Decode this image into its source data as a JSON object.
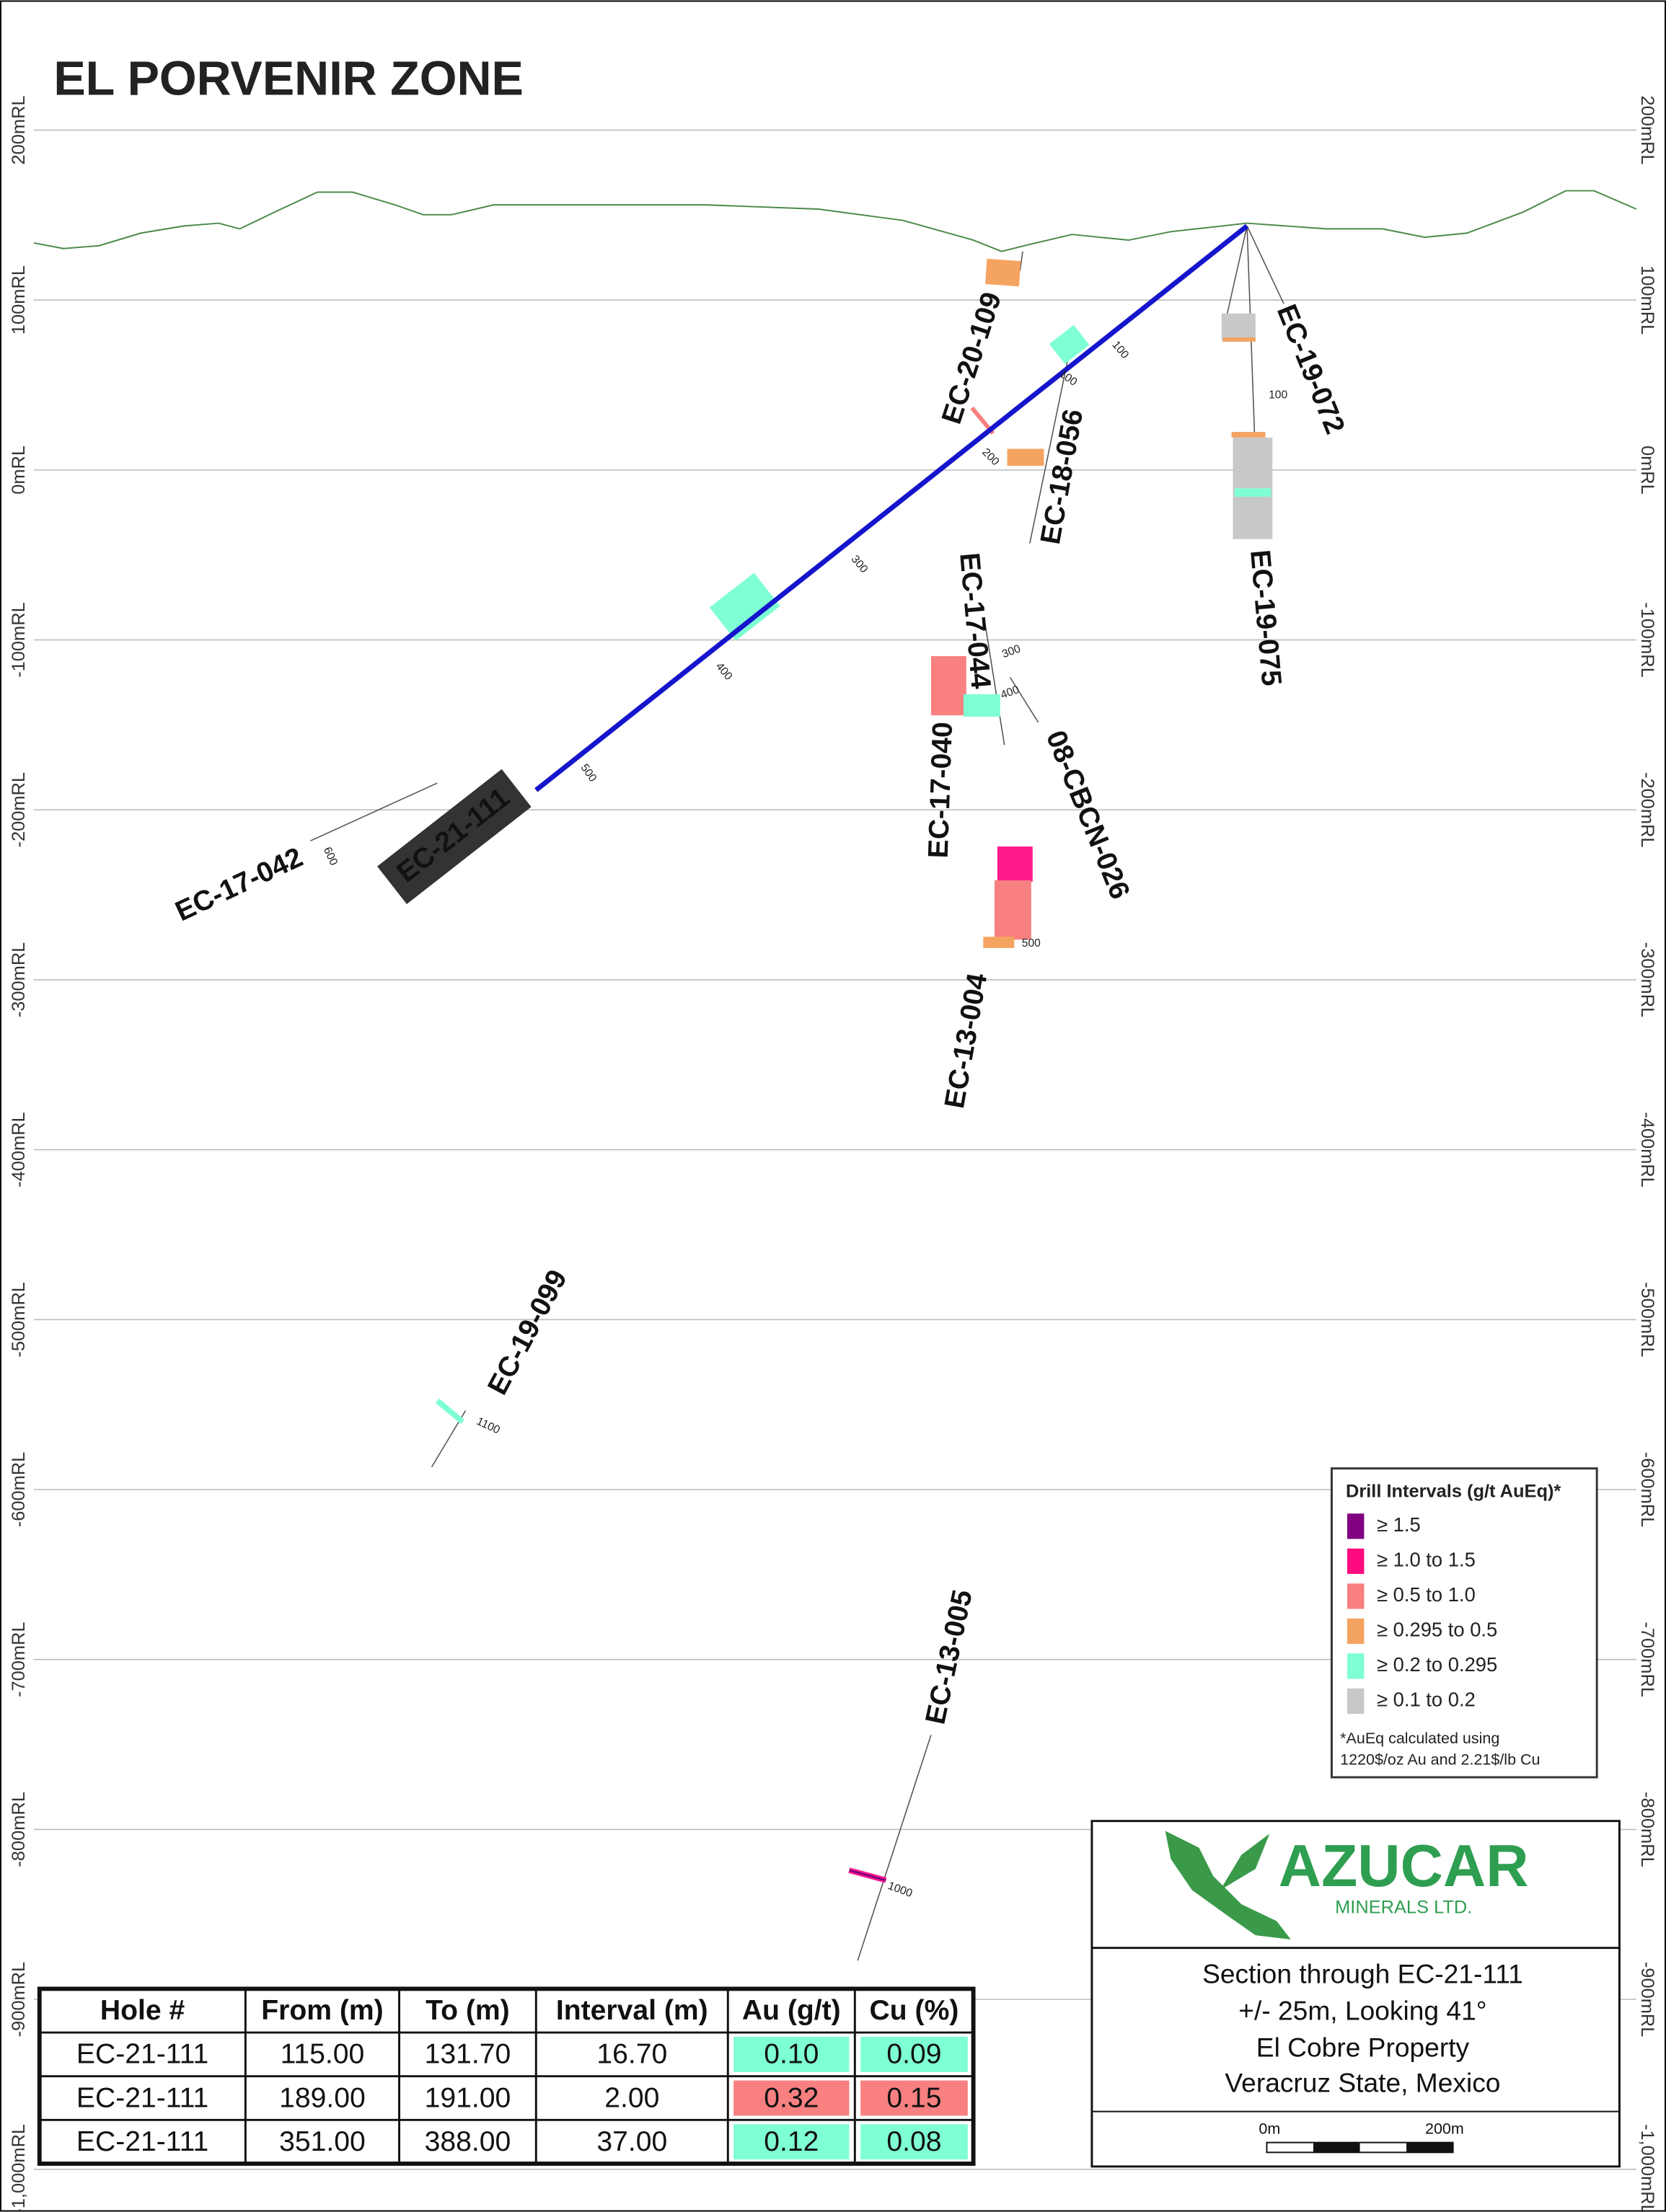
{
  "header": {
    "title": "EL PORVENIR ZONE"
  },
  "elevations": [
    "200mRL",
    "100mRL",
    "0mRL",
    "-100mRL",
    "-200mRL",
    "-300mRL",
    "-400mRL",
    "-500mRL",
    "-600mRL",
    "-700mRL",
    "-800mRL",
    "-900mRL",
    "-1,000mRL"
  ],
  "holes": [
    "EC-20-109",
    "EC-19-072",
    "EC-18-056",
    "EC-19-075",
    "EC-17-044",
    "EC-17-040",
    "08-CBCN-026",
    "EC-17-042",
    "EC-21-111",
    "EC-13-004",
    "EC-19-099",
    "EC-13-005"
  ],
  "depth_marks": [
    "100",
    "100",
    "100",
    "200",
    "300",
    "300",
    "400",
    "400",
    "500",
    "500",
    "600",
    "1100",
    "1000"
  ],
  "legend": {
    "title": "Drill Intervals (g/t AuEq)*",
    "items": [
      "≥ 1.5",
      "≥ 1.0 to 1.5",
      "≥ 0.5 to 1.0",
      "≥ 0.295 to 0.5",
      "≥ 0.2 to 0.295",
      "≥ 0.1 to 0.2"
    ],
    "note": [
      "*AuEq calculated using",
      "1220$/oz Au and 2.21$/lb Cu"
    ]
  },
  "logo": {
    "name": "AZUCAR",
    "subtitle": "MINERALS LTD."
  },
  "caption": [
    "Section through EC-21-111",
    "+/- 25m, Looking 41°",
    "El Cobre Property",
    "Veracruz State, Mexico"
  ],
  "scale": {
    "start": "0m",
    "end": "200m"
  },
  "table": {
    "header": [
      "Hole #",
      "From (m)",
      "To (m)",
      "Interval (m)",
      "Au (g/t)",
      "Cu (%)"
    ],
    "rows": [
      [
        "EC-21-111",
        "115.00",
        "131.70",
        "16.70",
        "0.10",
        "0.09"
      ],
      [
        "EC-21-111",
        "189.00",
        "191.00",
        "2.00",
        "0.32",
        "0.15"
      ],
      [
        "EC-21-111",
        "351.00",
        "388.00",
        "37.00",
        "0.12",
        "0.08"
      ]
    ]
  }
}
